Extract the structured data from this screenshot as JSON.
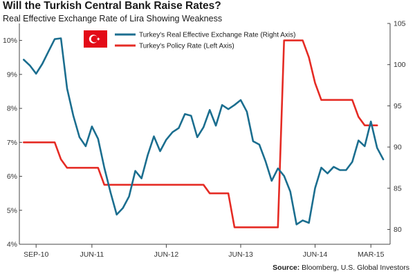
{
  "title": "Will the Turkish Central Bank Raise Rates?",
  "subtitle": "Real Effective Exchange Rate of Lira Showing Weakness",
  "source": {
    "label": "Source:",
    "text": "Bloomberg, U.S. Global Investors"
  },
  "legend": {
    "flag_icon": "turkey-flag-icon",
    "items": [
      {
        "label": "Turkey's Real Effective Exchange Rate (Right Axis)",
        "color": "#1b6e8f"
      },
      {
        "label": "Turkey's Policy Rate (Left Axis)",
        "color": "#e52b24"
      }
    ]
  },
  "chart_data": {
    "type": "line",
    "x_tick_labels": [
      "SEP-10",
      "JUN-11",
      "JUN-12",
      "JUN-13",
      "JUN-14",
      "MAR-15"
    ],
    "x_tick_dates": [
      "2010-09",
      "2011-06",
      "2012-06",
      "2013-06",
      "2014-06",
      "2015-03"
    ],
    "left_axis": {
      "ylim": [
        4,
        10.5
      ],
      "ticks": [
        4,
        5,
        6,
        7,
        8,
        9,
        10
      ],
      "tick_labels": [
        "4%",
        "5%",
        "6%",
        "7%",
        "8%",
        "9%",
        "10%"
      ]
    },
    "right_axis": {
      "ylim": [
        78.2,
        105
      ],
      "ticks": [
        80,
        85,
        90,
        95,
        100,
        105
      ],
      "tick_labels": [
        "80",
        "85",
        "90",
        "95",
        "100",
        "105"
      ]
    },
    "series": [
      {
        "name": "Turkey's Real Effective Exchange Rate (Right Axis)",
        "axis": "right",
        "color": "#1b6e8f",
        "points": [
          [
            "2010-07",
            100.6
          ],
          [
            "2010-08",
            99.9
          ],
          [
            "2010-09",
            98.9
          ],
          [
            "2010-10",
            100.1
          ],
          [
            "2010-11",
            101.6
          ],
          [
            "2010-12",
            103.1
          ],
          [
            "2011-01",
            103.2
          ],
          [
            "2011-02",
            97.1
          ],
          [
            "2011-03",
            93.8
          ],
          [
            "2011-04",
            91.2
          ],
          [
            "2011-05",
            90.1
          ],
          [
            "2011-06",
            92.5
          ],
          [
            "2011-07",
            91.0
          ],
          [
            "2011-08",
            87.5
          ],
          [
            "2011-09",
            84.5
          ],
          [
            "2011-10",
            81.8
          ],
          [
            "2011-11",
            82.6
          ],
          [
            "2011-12",
            84.0
          ],
          [
            "2012-01",
            87.1
          ],
          [
            "2012-02",
            86.2
          ],
          [
            "2012-03",
            89.0
          ],
          [
            "2012-04",
            91.3
          ],
          [
            "2012-05",
            89.5
          ],
          [
            "2012-06",
            90.9
          ],
          [
            "2012-07",
            91.8
          ],
          [
            "2012-08",
            92.3
          ],
          [
            "2012-09",
            94.0
          ],
          [
            "2012-10",
            93.8
          ],
          [
            "2012-11",
            91.2
          ],
          [
            "2012-12",
            92.4
          ],
          [
            "2013-01",
            94.5
          ],
          [
            "2013-02",
            92.6
          ],
          [
            "2013-03",
            95.1
          ],
          [
            "2013-04",
            94.6
          ],
          [
            "2013-05",
            95.1
          ],
          [
            "2013-06",
            95.7
          ],
          [
            "2013-07",
            94.3
          ],
          [
            "2013-08",
            90.7
          ],
          [
            "2013-09",
            90.3
          ],
          [
            "2013-10",
            88.3
          ],
          [
            "2013-11",
            85.9
          ],
          [
            "2013-12",
            87.4
          ],
          [
            "2014-01",
            86.5
          ],
          [
            "2014-02",
            84.6
          ],
          [
            "2014-03",
            80.6
          ],
          [
            "2014-04",
            81.1
          ],
          [
            "2014-05",
            80.8
          ],
          [
            "2014-06",
            85.0
          ],
          [
            "2014-07",
            87.5
          ],
          [
            "2014-08",
            86.8
          ],
          [
            "2014-09",
            87.6
          ],
          [
            "2014-10",
            87.2
          ],
          [
            "2014-11",
            87.2
          ],
          [
            "2014-12",
            88.2
          ],
          [
            "2015-01",
            90.8
          ],
          [
            "2015-02",
            90.1
          ],
          [
            "2015-03",
            93.1
          ],
          [
            "2015-04",
            89.9
          ],
          [
            "2015-05",
            88.5
          ]
        ]
      },
      {
        "name": "Turkey's Policy Rate (Left Axis)",
        "axis": "left",
        "color": "#e52b24",
        "points": [
          [
            "2010-07",
            7.0
          ],
          [
            "2010-12",
            7.0
          ],
          [
            "2011-01",
            6.5
          ],
          [
            "2011-02",
            6.25
          ],
          [
            "2011-07",
            6.25
          ],
          [
            "2011-08",
            5.75
          ],
          [
            "2012-12",
            5.75
          ],
          [
            "2013-01",
            5.5
          ],
          [
            "2013-04",
            5.5
          ],
          [
            "2013-05",
            4.5
          ],
          [
            "2013-12",
            4.5
          ],
          [
            "2014-01",
            10.0
          ],
          [
            "2014-04",
            10.0
          ],
          [
            "2014-05",
            9.5
          ],
          [
            "2014-06",
            8.75
          ],
          [
            "2014-07",
            8.25
          ],
          [
            "2014-12",
            8.25
          ],
          [
            "2015-01",
            7.75
          ],
          [
            "2015-02",
            7.5
          ],
          [
            "2015-04",
            7.5
          ]
        ]
      }
    ],
    "grid": false,
    "legend_position": "top-left"
  }
}
